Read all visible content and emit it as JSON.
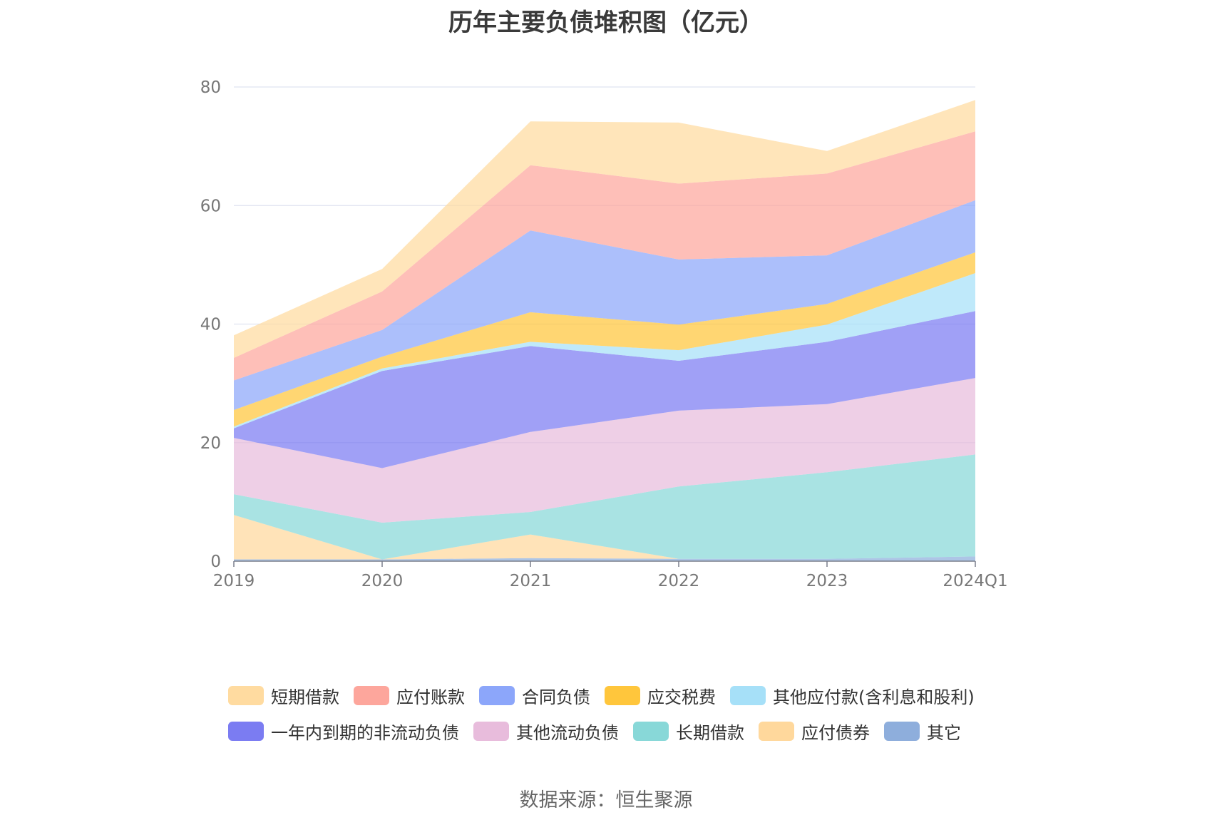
{
  "chart_data": {
    "type": "area",
    "stacked": true,
    "title": "历年主要负债堆积图（亿元）",
    "categories": [
      "2019",
      "2020",
      "2021",
      "2022",
      "2023",
      "2024Q1"
    ],
    "ylim": [
      0,
      80
    ],
    "yticks": [
      "0",
      "20",
      "40",
      "60",
      "80"
    ],
    "grid": true,
    "legend_position": "bottom",
    "series": [
      {
        "name": "其它",
        "color": "#8eaedc",
        "values": [
          0.3,
          0.3,
          0.5,
          0.4,
          0.4,
          0.8
        ]
      },
      {
        "name": "应付债券",
        "color": "#ffd89c",
        "values": [
          7.5,
          0.0,
          4.0,
          0.0,
          0.0,
          0.0
        ]
      },
      {
        "name": "长期借款",
        "color": "#88d8d8",
        "values": [
          3.5,
          6.2,
          3.8,
          12.2,
          14.6,
          17.2
        ]
      },
      {
        "name": "其他流动负债",
        "color": "#e8bcdc",
        "values": [
          9.5,
          9.2,
          13.5,
          12.8,
          11.5,
          12.9
        ]
      },
      {
        "name": "一年内到期的非流动负债",
        "color": "#7b7cf2",
        "values": [
          1.6,
          16.4,
          14.5,
          8.4,
          10.5,
          11.3
        ]
      },
      {
        "name": "其他应付款(含利息和股利)",
        "color": "#a6e0f8",
        "values": [
          0.3,
          0.4,
          0.7,
          1.8,
          2.9,
          6.4
        ]
      },
      {
        "name": "应交税费",
        "color": "#ffc63c",
        "values": [
          2.8,
          2.0,
          5.0,
          4.3,
          3.5,
          3.5
        ]
      },
      {
        "name": "合同负债",
        "color": "#8ca6fa",
        "values": [
          5.0,
          4.5,
          13.8,
          11.0,
          8.2,
          8.8
        ]
      },
      {
        "name": "应付账款",
        "color": "#fda69c",
        "values": [
          3.8,
          6.5,
          11.0,
          12.8,
          13.8,
          11.6
        ]
      },
      {
        "name": "短期借款",
        "color": "#ffdba0",
        "values": [
          3.8,
          3.8,
          7.4,
          10.3,
          3.8,
          5.3
        ]
      }
    ],
    "legend_order": [
      "短期借款",
      "应付账款",
      "合同负债",
      "应交税费",
      "其他应付款(含利息和股利)",
      "一年内到期的非流动负债",
      "其他流动负债",
      "长期借款",
      "应付债券",
      "其它"
    ],
    "legend_rows": [
      5,
      5
    ],
    "source": "数据来源：恒生聚源"
  }
}
